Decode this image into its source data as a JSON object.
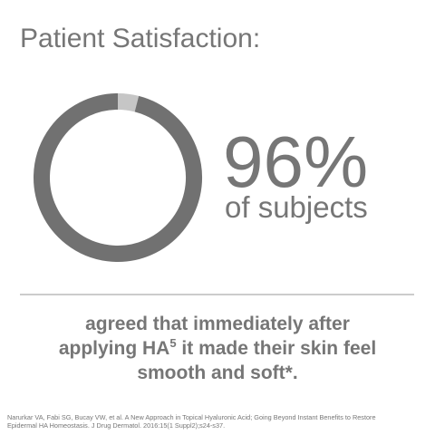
{
  "chart_data": {
    "type": "donut",
    "title": "Patient Satisfaction:",
    "values": [
      96,
      4
    ],
    "value_labels": [
      "96%",
      null
    ],
    "colors": [
      "#717171",
      "#c6c6c6"
    ],
    "caption": "of subjects"
  },
  "statement": {
    "line1": "agreed that immediately after",
    "line2a": "applying HA",
    "sup": "5",
    "line2b": " it made their skin feel",
    "line3": "smooth and soft*."
  },
  "reference": {
    "line1": "Narurkar VA, Fabi SG, Bucay VW, et al. A New Approach in Topical Hyaluronic Acid; Going Beyond Instant Benefits to Restore",
    "line2": "Epidermal HA Homeostasis. J Drug Dermatol. 2016:15(1 Suppl2);s24-s37."
  }
}
